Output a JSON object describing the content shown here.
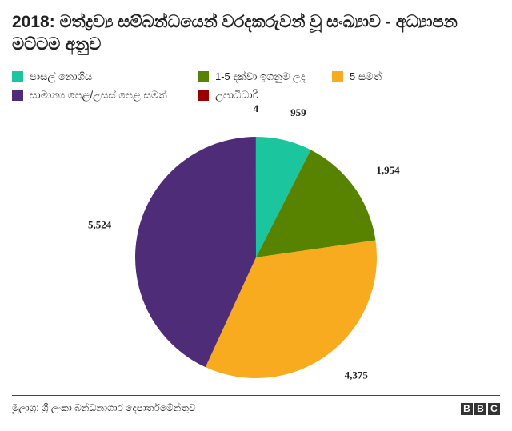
{
  "chart_data": {
    "type": "pie",
    "title": "2018: මත්ද්‍රව්‍ය සම්බන්ධයෙන් වරදකරුවන් වූ සංඛ්‍යාව - අධ්‍යාපන මට්ටම අනුව",
    "categories": [
      "පාසල් නොගිය",
      "1-5 දක්වා ඉගනුම ලද",
      "5 සමත්",
      "සාමාන්‍ය පෙළ/උසස් පෙළ සමත්",
      "උපාධිධාරී"
    ],
    "values": [
      959,
      1954,
      4375,
      5524,
      4
    ],
    "value_labels": [
      "959",
      "1,954",
      "4,375",
      "5,524",
      "4"
    ],
    "colors": [
      "#1bc59e",
      "#588300",
      "#f8ab1f",
      "#4f2c78",
      "#990000"
    ],
    "source": "මූලාශ්‍ර: ශ්‍රී ලංකා බන්ධනාගාර දෙපාර්තමේන්තුව",
    "logo": [
      "B",
      "B",
      "C"
    ]
  }
}
